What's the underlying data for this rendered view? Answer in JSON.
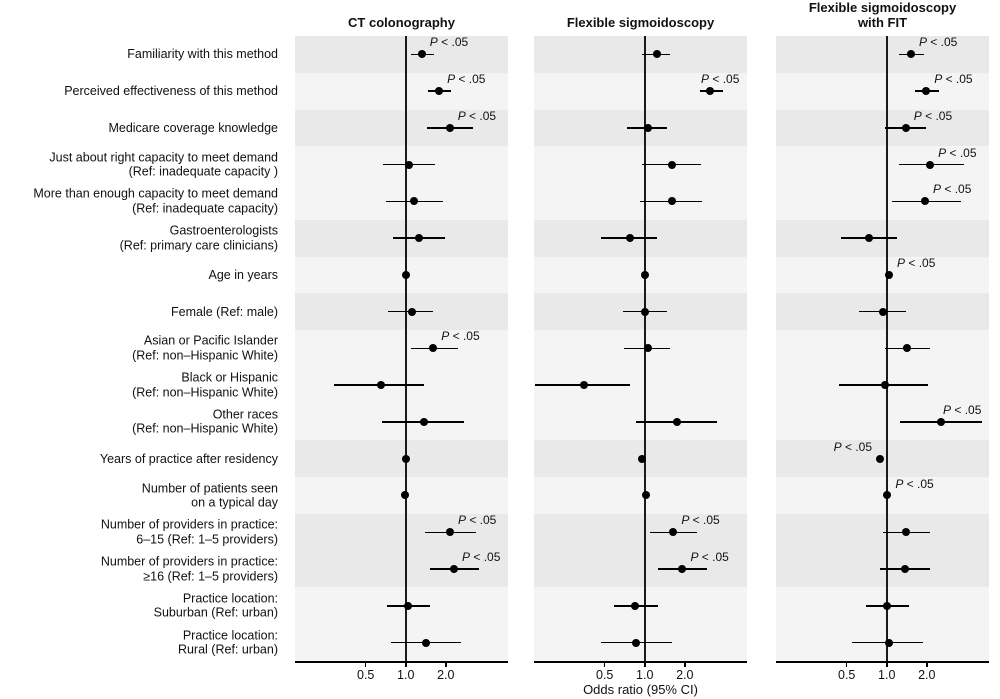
{
  "chart_data": {
    "type": "forest",
    "xlabel": "Odds ratio (95% CI)",
    "x_scale": "log",
    "x_domain": [
      0.147,
      5.87
    ],
    "x_ticks": [
      0.5,
      1.0,
      2.0
    ],
    "x_tick_labels": [
      "0.5",
      "1.0",
      "2.0"
    ],
    "ref_line": 1.0,
    "sig_label": "P < .05",
    "colors": {
      "band_dark": "#e9e9e9",
      "band_light": "#f4f4f4",
      "marker": "#000000",
      "text": "#111111"
    },
    "categories": [
      [
        "Familiarity with this method"
      ],
      [
        "Perceived effectiveness of this method"
      ],
      [
        "Medicare coverage knowledge"
      ],
      [
        "Just about right capacity to meet demand",
        "(Ref: inadequate capacity )"
      ],
      [
        "More than enough capacity to meet demand",
        "(Ref: inadequate capacity)"
      ],
      [
        "Gastroenterologists",
        "(Ref: primary care clinicians)"
      ],
      [
        "Age in years"
      ],
      [
        "Female (Ref: male)"
      ],
      [
        "Asian or Pacific Islander",
        "(Ref: non–Hispanic White)"
      ],
      [
        "Black or Hispanic",
        "(Ref: non–Hispanic White)"
      ],
      [
        "Other races",
        "(Ref: non–Hispanic White)"
      ],
      [
        "Years of practice after residency"
      ],
      [
        "Number of patients seen",
        "on a typical day"
      ],
      [
        "Number of providers in practice:",
        "6–15 (Ref: 1–5 providers)"
      ],
      [
        "Number of providers in practice:",
        "≥16 (Ref: 1–5 providers)"
      ],
      [
        "Practice location:",
        "Suburban (Ref: urban)"
      ],
      [
        "Practice location:",
        "Rural (Ref: urban)"
      ]
    ],
    "band_groups": [
      {
        "rows": 1,
        "shade": "dark"
      },
      {
        "rows": 1,
        "shade": "light"
      },
      {
        "rows": 1,
        "shade": "dark"
      },
      {
        "rows": 2,
        "shade": "light"
      },
      {
        "rows": 1,
        "shade": "dark"
      },
      {
        "rows": 1,
        "shade": "light"
      },
      {
        "rows": 1,
        "shade": "dark"
      },
      {
        "rows": 3,
        "shade": "light"
      },
      {
        "rows": 1,
        "shade": "dark"
      },
      {
        "rows": 1,
        "shade": "light"
      },
      {
        "rows": 2,
        "shade": "dark"
      },
      {
        "rows": 2,
        "shade": "light"
      }
    ],
    "series": [
      {
        "name": "CT colonography",
        "title_lines": [
          "CT colonography"
        ],
        "points": [
          {
            "or": 1.32,
            "lo": 1.1,
            "hi": 1.62,
            "sig": true
          },
          {
            "or": 1.78,
            "lo": 1.47,
            "hi": 2.18,
            "sig": true
          },
          {
            "or": 2.14,
            "lo": 1.44,
            "hi": 3.18,
            "sig": true
          },
          {
            "or": 1.05,
            "lo": 0.68,
            "hi": 1.65
          },
          {
            "or": 1.16,
            "lo": 0.71,
            "hi": 1.92
          },
          {
            "or": 1.25,
            "lo": 0.8,
            "hi": 1.96
          },
          {
            "or": 1.0,
            "lo": 0.97,
            "hi": 1.04
          },
          {
            "or": 1.11,
            "lo": 0.74,
            "hi": 1.61
          },
          {
            "or": 1.61,
            "lo": 1.09,
            "hi": 2.45,
            "sig": true
          },
          {
            "or": 0.65,
            "lo": 0.29,
            "hi": 1.37
          },
          {
            "or": 1.37,
            "lo": 0.66,
            "hi": 2.74
          },
          {
            "or": 1.0,
            "lo": 0.97,
            "hi": 1.03
          },
          {
            "or": 0.99,
            "lo": 0.96,
            "hi": 1.03
          },
          {
            "or": 2.15,
            "lo": 1.4,
            "hi": 3.35,
            "sig": true
          },
          {
            "or": 2.31,
            "lo": 1.53,
            "hi": 3.55,
            "sig": true
          },
          {
            "or": 1.04,
            "lo": 0.72,
            "hi": 1.52
          },
          {
            "or": 1.43,
            "lo": 0.77,
            "hi": 2.59
          }
        ]
      },
      {
        "name": "Flexible sigmoidoscopy",
        "title_lines": [
          "Flexible sigmoidoscopy"
        ],
        "points": [
          {
            "or": 1.23,
            "lo": 0.96,
            "hi": 1.54
          },
          {
            "or": 3.1,
            "lo": 2.6,
            "hi": 3.88,
            "sig": true
          },
          {
            "or": 1.06,
            "lo": 0.74,
            "hi": 1.48
          },
          {
            "or": 1.59,
            "lo": 0.96,
            "hi": 2.64
          },
          {
            "or": 1.59,
            "lo": 0.92,
            "hi": 2.69
          },
          {
            "or": 0.78,
            "lo": 0.47,
            "hi": 1.23
          },
          {
            "or": 1.0,
            "lo": 0.97,
            "hi": 1.03
          },
          {
            "or": 1.01,
            "lo": 0.69,
            "hi": 1.48
          },
          {
            "or": 1.06,
            "lo": 0.7,
            "hi": 1.54
          },
          {
            "or": 0.35,
            "lo": 0.15,
            "hi": 0.77
          },
          {
            "or": 1.74,
            "lo": 0.86,
            "hi": 3.52
          },
          {
            "or": 0.95,
            "lo": 0.92,
            "hi": 0.98
          },
          {
            "or": 1.02,
            "lo": 0.99,
            "hi": 1.05
          },
          {
            "or": 1.64,
            "lo": 1.09,
            "hi": 2.46,
            "sig": true
          },
          {
            "or": 1.92,
            "lo": 1.26,
            "hi": 2.96,
            "sig": true
          },
          {
            "or": 0.85,
            "lo": 0.59,
            "hi": 1.25
          },
          {
            "or": 0.86,
            "lo": 0.47,
            "hi": 1.6
          }
        ]
      },
      {
        "name": "Flexible sigmoidoscopy with FIT",
        "title_lines": [
          "Flexible sigmoidoscopy",
          "with FIT"
        ],
        "points": [
          {
            "or": 1.52,
            "lo": 1.24,
            "hi": 1.91,
            "sig": true
          },
          {
            "or": 1.98,
            "lo": 1.62,
            "hi": 2.49,
            "sig": true
          },
          {
            "or": 1.39,
            "lo": 0.97,
            "hi": 1.98,
            "sig": true
          },
          {
            "or": 2.12,
            "lo": 1.24,
            "hi": 3.78,
            "sig": true
          },
          {
            "or": 1.94,
            "lo": 1.1,
            "hi": 3.61,
            "sig": true
          },
          {
            "or": 0.73,
            "lo": 0.45,
            "hi": 1.19
          },
          {
            "or": 1.04,
            "lo": 1.01,
            "hi": 1.07,
            "sig": true
          },
          {
            "or": 0.93,
            "lo": 0.62,
            "hi": 1.39
          },
          {
            "or": 1.41,
            "lo": 0.97,
            "hi": 2.1
          },
          {
            "or": 0.97,
            "lo": 0.44,
            "hi": 2.04
          },
          {
            "or": 2.57,
            "lo": 1.26,
            "hi": 5.2,
            "sig": true
          },
          {
            "or": 0.89,
            "lo": 0.86,
            "hi": 0.92,
            "sig": true,
            "sig_side": "left"
          },
          {
            "or": 1.01,
            "lo": 0.98,
            "hi": 1.04,
            "sig": true
          },
          {
            "or": 1.39,
            "lo": 0.93,
            "hi": 2.12
          },
          {
            "or": 1.36,
            "lo": 0.89,
            "hi": 2.1
          },
          {
            "or": 1.01,
            "lo": 0.7,
            "hi": 1.46
          },
          {
            "or": 1.04,
            "lo": 0.55,
            "hi": 1.87
          }
        ]
      }
    ]
  }
}
